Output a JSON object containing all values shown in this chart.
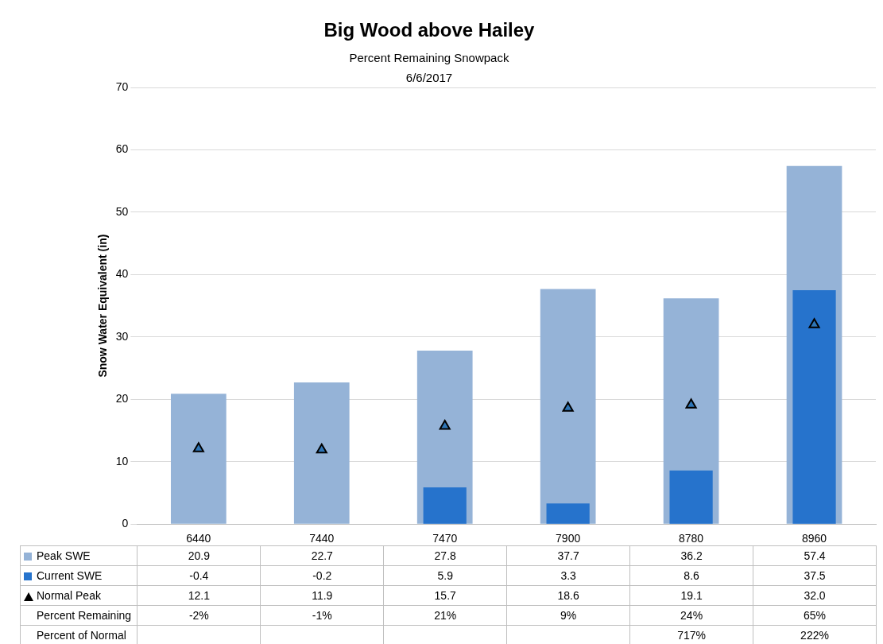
{
  "chart_data": {
    "type": "bar",
    "title": "Big Wood above Hailey",
    "subtitle": "Percent Remaining Snowpack\n6/6/2017",
    "ylabel": "Snow Water Equivalent (in)",
    "categories": [
      "6440",
      "7440",
      "7470",
      "7900",
      "8780",
      "8960"
    ],
    "series": [
      {
        "name": "Peak SWE",
        "color": "#95b3d7",
        "values": [
          20.9,
          22.7,
          27.8,
          37.7,
          36.2,
          57.4
        ],
        "value_labels": [
          "20.9",
          "22.7",
          "27.8",
          "37.7",
          "36.2",
          "57.4"
        ]
      },
      {
        "name": "Current SWE",
        "color": "#2673cc",
        "values": [
          null,
          null,
          5.9,
          3.3,
          8.6,
          37.5
        ],
        "value_labels": [
          "-0.4",
          "-0.2",
          "5.9",
          "3.3",
          "8.6",
          "37.5"
        ]
      },
      {
        "name": "Normal Peak",
        "type": "scatter",
        "color": "#2e75b6",
        "marker": "triangle",
        "values": [
          12.1,
          11.9,
          15.7,
          18.6,
          19.1,
          32.0
        ],
        "value_labels": [
          "12.1",
          "11.9",
          "15.7",
          "18.6",
          "19.1",
          "32.0"
        ]
      }
    ],
    "ylim": [
      0,
      70
    ],
    "yticks": [
      0,
      10,
      20,
      30,
      40,
      50,
      60,
      70
    ],
    "grid": "y",
    "legend": "bottom",
    "annotations": [
      "Percent Remaining",
      "-2%",
      "-1%",
      "21%",
      "9%",
      "24%",
      "65%",
      "Percent of Normal",
      "717%",
      "222%"
    ]
  }
}
